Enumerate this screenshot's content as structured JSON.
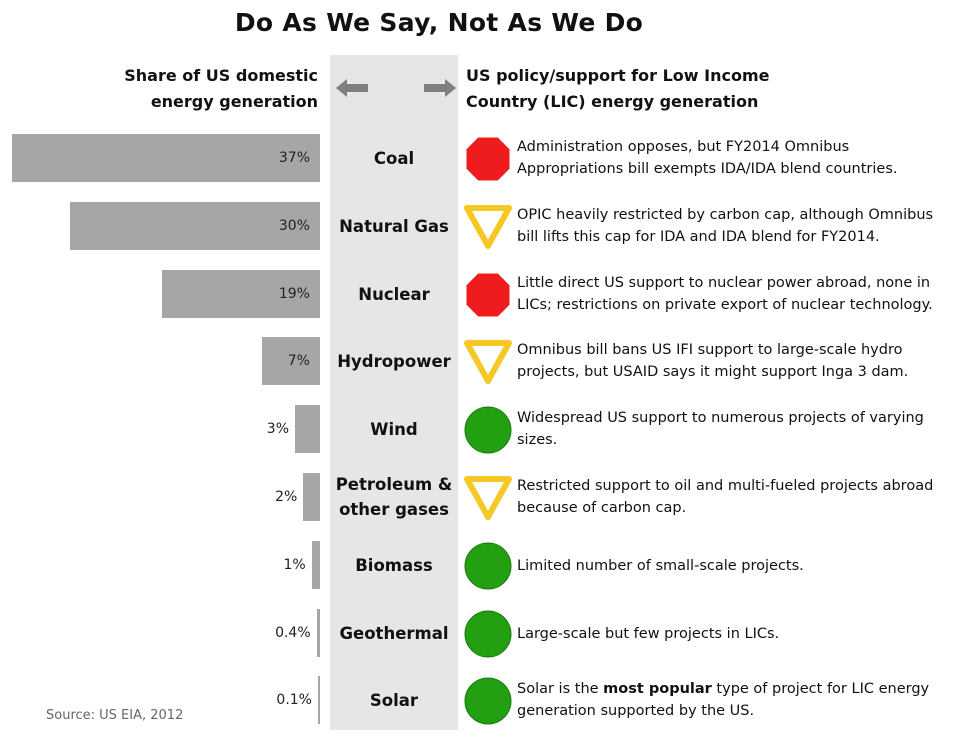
{
  "title": "Do As We Say, Not As We Do",
  "header_left": [
    "Share of US domestic",
    "energy generation"
  ],
  "header_right": [
    "US policy/support for Low Income",
    "Country (LIC) energy generation"
  ],
  "source": "Source: US EIA, 2012",
  "colors": {
    "bar": "#a6a6a6",
    "stop": "#ee1c1c",
    "yield": "#f5c825",
    "go": "#22a012",
    "center_column": "#e6e6e6"
  },
  "legend_icons": {
    "stop": "stop-sign-icon",
    "yield": "yield-sign-icon",
    "go": "green-circle-icon"
  },
  "chart_data": {
    "type": "bar",
    "orientation": "horizontal",
    "categories": [
      "Coal",
      "Natural Gas",
      "Nuclear",
      "Hydropower",
      "Wind",
      "Petroleum & other gases",
      "Biomass",
      "Geothermal",
      "Solar"
    ],
    "values": [
      37,
      30,
      19,
      7,
      3,
      2,
      1,
      0.4,
      0.1
    ],
    "value_labels": [
      "37%",
      "30%",
      "19%",
      "7%",
      "3%",
      "2%",
      "1%",
      "0.4%",
      "0.1%"
    ],
    "unit": "%",
    "xlim": [
      0,
      37
    ]
  },
  "rows": [
    {
      "label": [
        "Coal"
      ],
      "value": 37,
      "value_label": "37%",
      "sign": "stop",
      "desc": [
        "Administration opposes, but FY2014 Omnibus",
        "Appropriations bill exempts IDA/IDA blend countries."
      ]
    },
    {
      "label": [
        "Natural Gas"
      ],
      "value": 30,
      "value_label": "30%",
      "sign": "yield",
      "desc": [
        "OPIC heavily restricted by carbon cap, although Omnibus",
        "bill lifts this cap for IDA and IDA blend for FY2014."
      ]
    },
    {
      "label": [
        "Nuclear"
      ],
      "value": 19,
      "value_label": "19%",
      "sign": "stop",
      "desc": [
        "Little direct US support to nuclear power abroad, none in",
        "LICs; restrictions on private export of nuclear technology."
      ]
    },
    {
      "label": [
        "Hydropower"
      ],
      "value": 7,
      "value_label": "7%",
      "sign": "yield",
      "desc": [
        "Omnibus bill bans US IFI support to large-scale hydro",
        "projects, but USAID says it might support Inga 3 dam."
      ]
    },
    {
      "label": [
        "Wind"
      ],
      "value": 3,
      "value_label": "3%",
      "sign": "go",
      "desc": [
        "Widespread US support to numerous projects of varying",
        "sizes."
      ]
    },
    {
      "label": [
        "Petroleum &",
        "other gases"
      ],
      "value": 2,
      "value_label": "2%",
      "sign": "yield",
      "desc": [
        "Restricted support to oil and multi-fueled projects abroad",
        "because of carbon cap."
      ]
    },
    {
      "label": [
        "Biomass"
      ],
      "value": 1,
      "value_label": "1%",
      "sign": "go",
      "desc": [
        "Limited number of small-scale projects."
      ]
    },
    {
      "label": [
        "Geothermal"
      ],
      "value": 0.4,
      "value_label": "0.4%",
      "sign": "go",
      "desc": [
        "Large-scale but few projects in LICs."
      ]
    },
    {
      "label": [
        "Solar"
      ],
      "value": 0.1,
      "value_label": "0.1%",
      "sign": "go",
      "desc": [
        "Solar is the ",
        "most popular",
        " type of project for LIC energy",
        "generation supported by the US."
      ]
    }
  ]
}
